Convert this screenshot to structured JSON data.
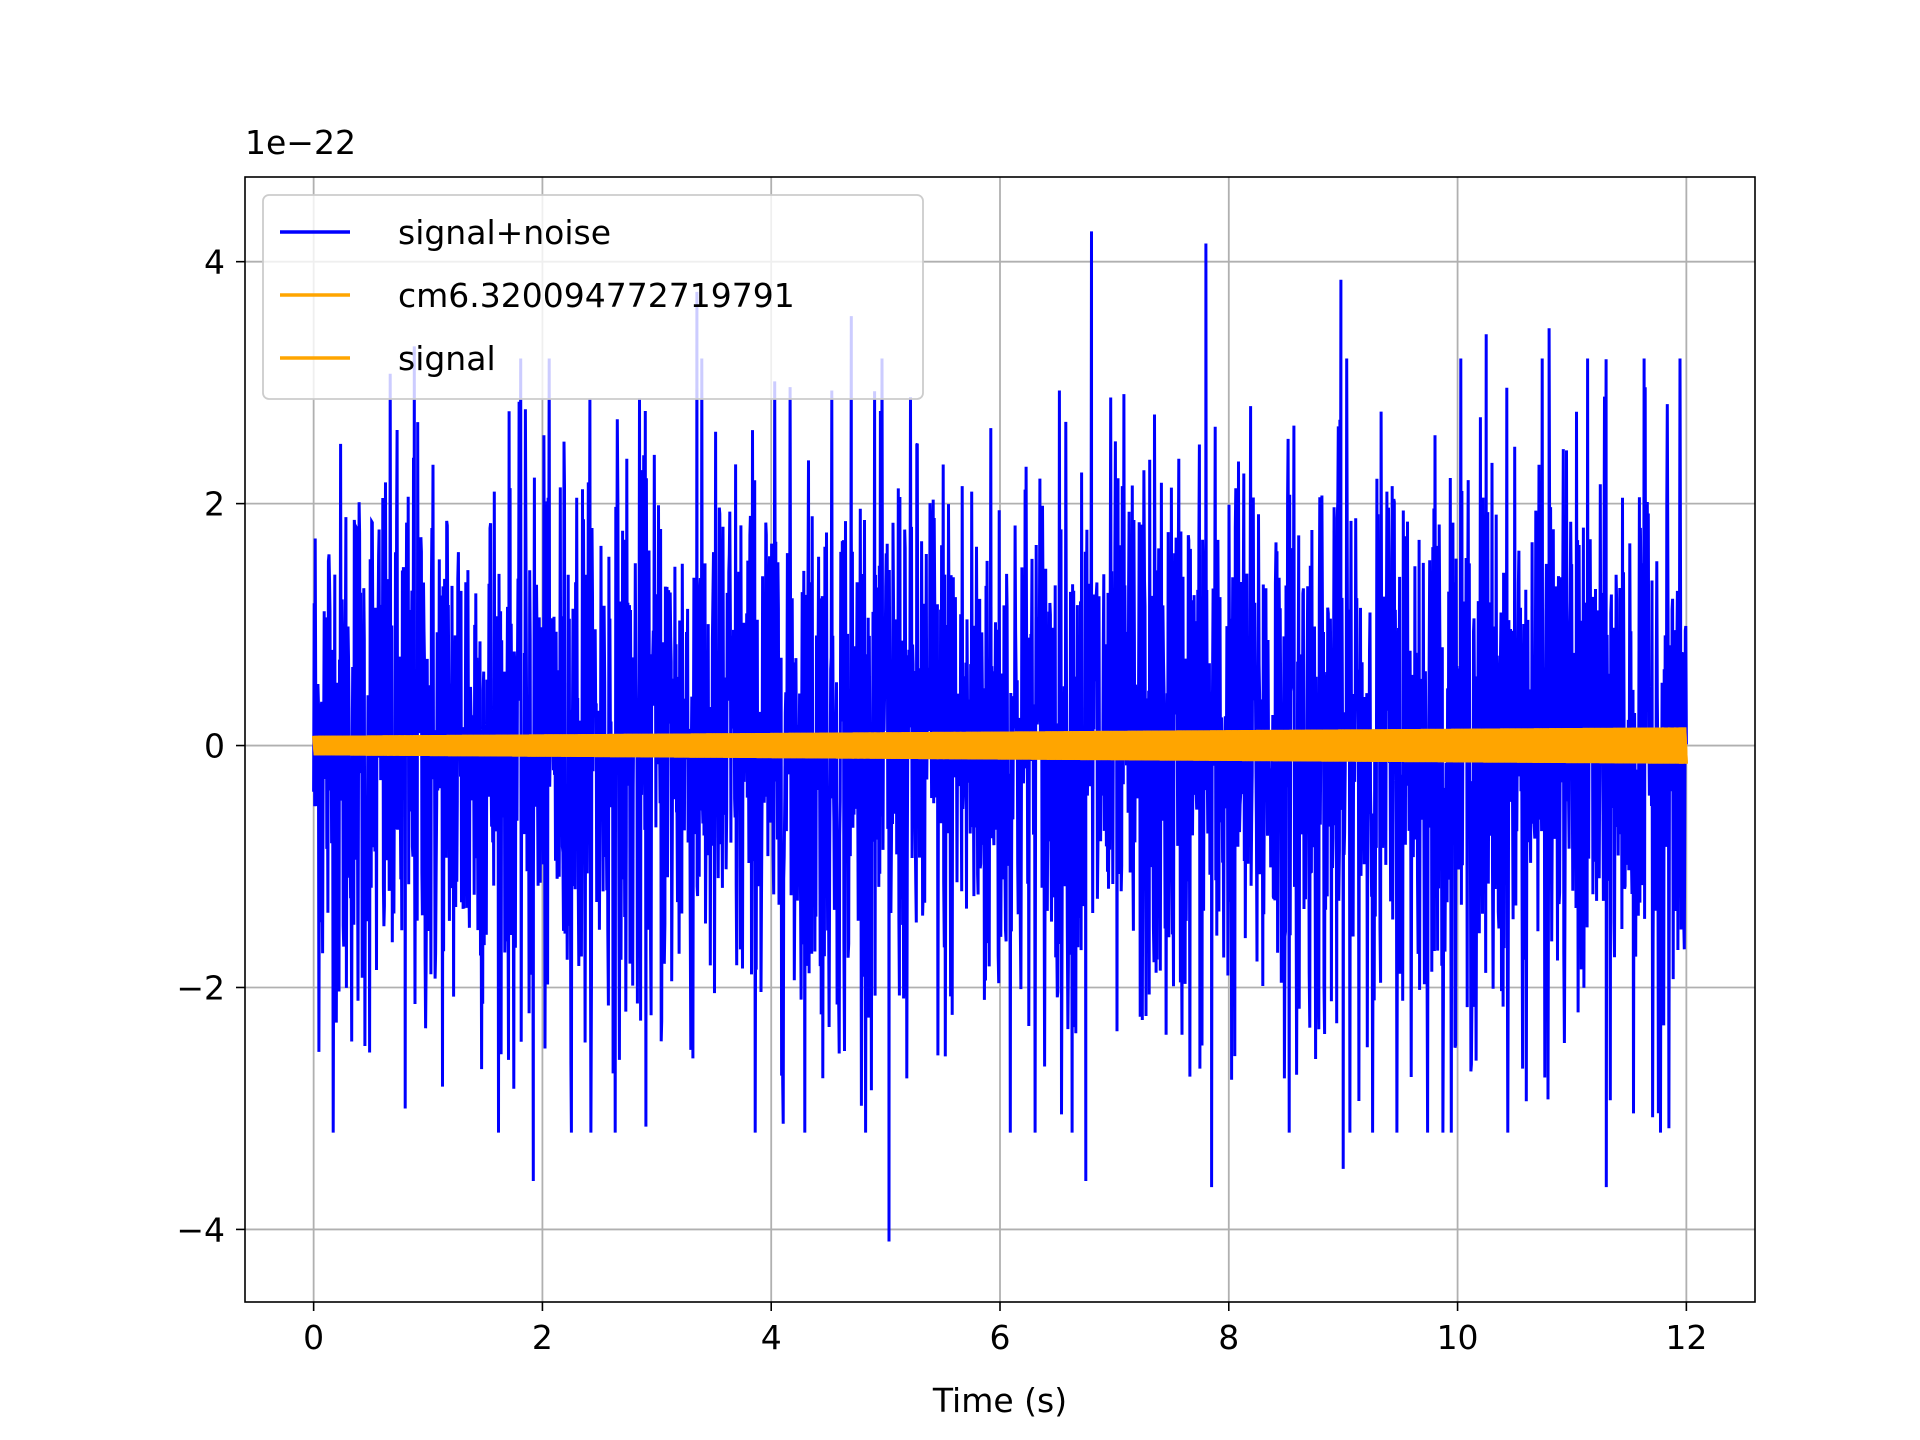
{
  "chart_data": {
    "type": "line",
    "title": "",
    "xlabel": "Time (s)",
    "ylabel": "",
    "offset_text": "1e−22",
    "xlim": [
      -0.6,
      12.6
    ],
    "ylim": [
      -4.6,
      4.7
    ],
    "x_ticks": [
      0,
      2,
      4,
      6,
      8,
      10,
      12
    ],
    "x_tick_labels": [
      "0",
      "2",
      "4",
      "6",
      "8",
      "10",
      "12"
    ],
    "y_ticks": [
      -4,
      -2,
      0,
      2,
      4
    ],
    "y_tick_labels": [
      "−4",
      "−2",
      "0",
      "2",
      "4"
    ],
    "grid": true,
    "legend_placement": "upper-left",
    "series": [
      {
        "name": "signal+noise",
        "color": "#0000ff",
        "x_range": [
          0,
          12
        ],
        "description_stats": {
          "typical_abs_amplitude": 1.5,
          "max": 4.25,
          "min": -4.1
        },
        "peaks_max": [
          [
            0.88,
            3.3
          ],
          [
            3.35,
            3.75
          ],
          [
            4.7,
            3.55
          ],
          [
            6.8,
            4.25
          ],
          [
            7.8,
            4.15
          ],
          [
            8.98,
            3.85
          ],
          [
            10.25,
            3.4
          ],
          [
            10.8,
            3.45
          ]
        ],
        "peaks_min": [
          [
            0.8,
            -3.0
          ],
          [
            1.92,
            -3.6
          ],
          [
            5.03,
            -4.1
          ],
          [
            6.75,
            -3.6
          ],
          [
            7.85,
            -3.65
          ],
          [
            9.0,
            -3.5
          ],
          [
            11.3,
            -3.65
          ]
        ]
      },
      {
        "name": "cm6.320094772719791",
        "color": "#ffa500",
        "x_range": [
          0,
          12
        ],
        "envelope_start": 0.08,
        "envelope_end": 0.15
      },
      {
        "name": "signal",
        "color": "#ffa500",
        "x_range": [
          0,
          12
        ],
        "envelope_start": 0.08,
        "envelope_end": 0.15
      }
    ]
  }
}
